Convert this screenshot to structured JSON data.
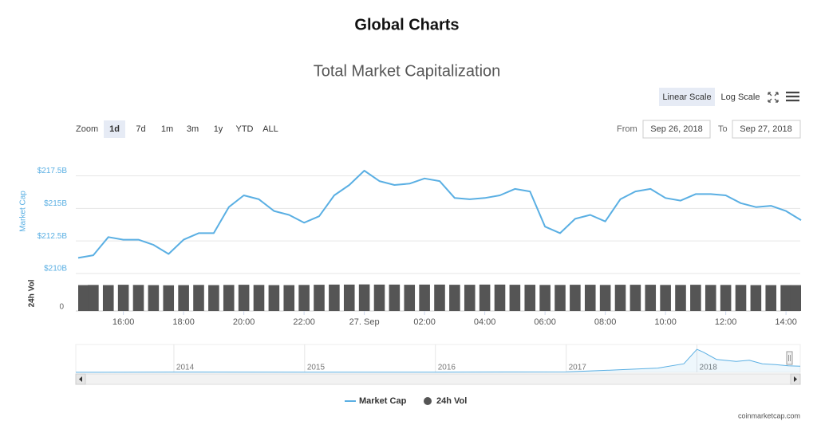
{
  "page": {
    "heading": "Global Charts",
    "scale_buttons": [
      "Linear Scale",
      "Log Scale"
    ],
    "zoom_label": "Zoom",
    "zoom_buttons": [
      "1d",
      "7d",
      "1m",
      "3m",
      "1y",
      "YTD",
      "ALL"
    ],
    "from_label": "From",
    "from_value": "Sep 26, 2018",
    "to_label": "To",
    "to_value": "Sep 27, 2018",
    "credit": "coinmarketcap.com"
  },
  "chart_data": [
    {
      "type": "line",
      "title": "Total Market Capitalization",
      "ylabel": "Market Cap",
      "y2label": "24h Vol",
      "x": [
        "2018-09-26T14:30",
        "2018-09-26T15:00",
        "2018-09-26T15:30",
        "2018-09-26T16:00",
        "2018-09-26T16:30",
        "2018-09-26T17:00",
        "2018-09-26T17:30",
        "2018-09-26T18:00",
        "2018-09-26T18:30",
        "2018-09-26T19:00",
        "2018-09-26T19:30",
        "2018-09-26T20:00",
        "2018-09-26T20:30",
        "2018-09-26T21:00",
        "2018-09-26T21:30",
        "2018-09-26T22:00",
        "2018-09-26T22:30",
        "2018-09-26T23:00",
        "2018-09-26T23:30",
        "2018-09-27T00:00",
        "2018-09-27T00:30",
        "2018-09-27T01:00",
        "2018-09-27T01:30",
        "2018-09-27T02:00",
        "2018-09-27T02:30",
        "2018-09-27T03:00",
        "2018-09-27T03:30",
        "2018-09-27T04:00",
        "2018-09-27T04:30",
        "2018-09-27T05:00",
        "2018-09-27T05:30",
        "2018-09-27T06:00",
        "2018-09-27T06:30",
        "2018-09-27T07:00",
        "2018-09-27T07:30",
        "2018-09-27T08:00",
        "2018-09-27T08:30",
        "2018-09-27T09:00",
        "2018-09-27T09:30",
        "2018-09-27T10:00",
        "2018-09-27T10:30",
        "2018-09-27T11:00",
        "2018-09-27T11:30",
        "2018-09-27T12:00",
        "2018-09-27T12:30",
        "2018-09-27T13:00",
        "2018-09-27T13:30",
        "2018-09-27T14:00",
        "2018-09-27T14:30"
      ],
      "xlim": [
        "2018-09-26T14:30",
        "2018-09-27T14:30"
      ],
      "xticks": [
        {
          "value": "2018-09-26T16:00",
          "label": "16:00"
        },
        {
          "value": "2018-09-26T18:00",
          "label": "18:00"
        },
        {
          "value": "2018-09-26T20:00",
          "label": "20:00"
        },
        {
          "value": "2018-09-26T22:00",
          "label": "22:00"
        },
        {
          "value": "2018-09-27T00:00",
          "label": "27. Sep"
        },
        {
          "value": "2018-09-27T02:00",
          "label": "02:00"
        },
        {
          "value": "2018-09-27T04:00",
          "label": "04:00"
        },
        {
          "value": "2018-09-27T06:00",
          "label": "06:00"
        },
        {
          "value": "2018-09-27T08:00",
          "label": "08:00"
        },
        {
          "value": "2018-09-27T10:00",
          "label": "10:00"
        },
        {
          "value": "2018-09-27T12:00",
          "label": "12:00"
        },
        {
          "value": "2018-09-27T14:00",
          "label": "14:00"
        }
      ],
      "series": [
        {
          "name": "Market Cap",
          "color": "#5aafe3",
          "values": [
            211.2,
            211.4,
            212.8,
            212.6,
            212.6,
            212.2,
            211.5,
            212.6,
            213.1,
            213.1,
            215.1,
            216.0,
            215.7,
            214.8,
            214.5,
            213.9,
            214.4,
            216.0,
            216.8,
            217.9,
            217.1,
            216.8,
            216.9,
            217.3,
            217.1,
            215.8,
            215.7,
            215.8,
            216.0,
            216.5,
            216.3,
            213.6,
            213.1,
            214.2,
            214.5,
            214.0,
            215.7,
            216.3,
            216.5,
            215.8,
            215.6,
            216.1,
            216.1,
            216.0,
            215.4,
            215.1,
            215.2,
            214.8,
            214.1
          ]
        },
        {
          "name": "24h Vol",
          "color": "#555555",
          "type": "bar",
          "axis": "y2",
          "values": [
            14.6,
            14.7,
            14.6,
            14.8,
            14.7,
            14.6,
            14.5,
            14.6,
            14.7,
            14.6,
            14.7,
            14.8,
            14.7,
            14.6,
            14.6,
            14.7,
            14.8,
            14.9,
            14.9,
            15.0,
            14.9,
            14.9,
            14.8,
            14.9,
            14.9,
            14.8,
            14.8,
            14.9,
            14.9,
            14.8,
            14.8,
            14.7,
            14.7,
            14.8,
            14.8,
            14.7,
            14.8,
            14.8,
            14.8,
            14.7,
            14.7,
            14.8,
            14.7,
            14.7,
            14.7,
            14.6,
            14.6,
            14.6,
            14.6
          ]
        }
      ],
      "ylim": [
        210,
        219.8
      ],
      "yticks": [
        {
          "value": 210,
          "label": "$210B"
        },
        {
          "value": 212.5,
          "label": "$212.5B"
        },
        {
          "value": 215,
          "label": "$215B"
        },
        {
          "value": 217.5,
          "label": "$217.5B"
        }
      ],
      "y2lim": [
        0,
        18
      ],
      "y2ticks": [
        0
      ],
      "grid": true
    },
    {
      "type": "area",
      "color": "#5aafe3",
      "x": [
        2013.25,
        2014.0,
        2015.0,
        2016.0,
        2017.0,
        2017.4,
        2017.7,
        2017.9,
        2018.0,
        2018.05,
        2018.15,
        2018.3,
        2018.4,
        2018.5,
        2018.6,
        2018.7,
        2018.79
      ],
      "values": [
        2,
        10,
        5,
        7,
        18,
        90,
        150,
        300,
        800,
        700,
        450,
        380,
        420,
        300,
        270,
        230,
        215
      ],
      "xlim": [
        2013.25,
        2018.79
      ],
      "xticks": [
        2014,
        2015,
        2016,
        2017,
        2018
      ],
      "ylim": [
        0,
        970
      ]
    }
  ]
}
